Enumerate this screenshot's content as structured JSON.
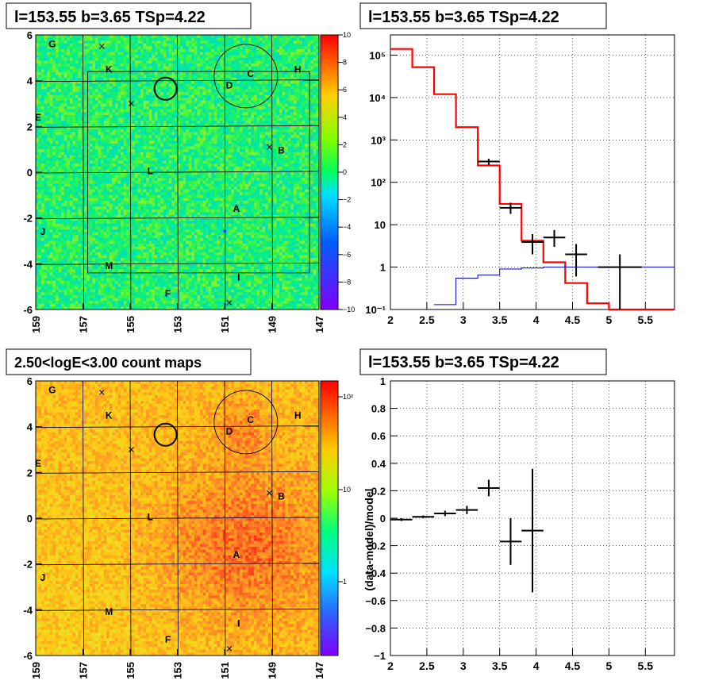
{
  "colors": {
    "frame": "#000000",
    "model_line": "#ff0000",
    "background_line": "#0000cc",
    "data_points": "#000000",
    "grid": "#000000"
  },
  "panels": {
    "tl_title": "l=153.55 b=3.65 TSp=4.22",
    "tr_title": "l=153.55 b=3.65 TSp=4.22",
    "bl_title": "2.50<logE<3.00 count maps",
    "br_title": "l=153.55 b=3.65 TSp=4.22"
  },
  "map_axes": {
    "x_ticks": [
      "159",
      "157",
      "155",
      "153",
      "151",
      "149",
      "147"
    ],
    "y_ticks": [
      "6",
      "4",
      "2",
      "0",
      "-2",
      "-4",
      "-6"
    ],
    "residual_colorbar_ticks": [
      "10",
      "8",
      "6",
      "4",
      "2",
      "0",
      "−2",
      "−4",
      "−6",
      "−8",
      "−10"
    ],
    "count_colorbar_ticks": [
      "10²",
      "10",
      "1"
    ]
  },
  "map_sources": [
    {
      "label": "G"
    },
    {
      "label": "K"
    },
    {
      "label": "C"
    },
    {
      "label": "H"
    },
    {
      "label": "D"
    },
    {
      "label": "E"
    },
    {
      "label": "B"
    },
    {
      "label": "L"
    },
    {
      "label": "A"
    },
    {
      "label": "J"
    },
    {
      "label": "M"
    },
    {
      "label": "I"
    },
    {
      "label": "F"
    }
  ],
  "chart_data": [
    {
      "type": "heatmap",
      "title": "l=153.55 b=3.65 TSp=4.22",
      "description_kind": "residual significance map",
      "xlim": [
        159,
        147
      ],
      "ylim": [
        -6,
        6
      ],
      "zlim": [
        -10,
        10
      ],
      "colorbar_ticks": [
        10,
        8,
        6,
        4,
        2,
        0,
        -2,
        -4,
        -6,
        -8,
        -10
      ],
      "grid": true
    },
    {
      "type": "line",
      "title": "l=153.55 b=3.65 TSp=4.22",
      "xlim": [
        2,
        5.9
      ],
      "ylim": [
        0.1,
        300000
      ],
      "y_scale": "log",
      "x_ticks": [
        "2",
        "2.5",
        "3",
        "3.5",
        "4",
        "4.5",
        "5",
        "5.5"
      ],
      "y_ticks": [
        "10⁻¹",
        "1",
        "10",
        "10²",
        "10³",
        "10⁴",
        "10⁵"
      ],
      "grid": true,
      "series": [
        {
          "kind": "step",
          "color": "#ff0000",
          "bins": [
            2.0,
            2.3,
            2.6,
            2.9,
            3.2,
            3.5,
            3.8,
            4.1,
            4.4,
            4.7,
            5.0,
            5.9
          ],
          "values": [
            140000,
            52000,
            12000,
            2000,
            250,
            31,
            4.2,
            1.3,
            0.42,
            0.14,
            0.1
          ]
        },
        {
          "kind": "step",
          "color": "#0000cc",
          "bins": [
            2.6,
            2.9,
            3.2,
            3.5,
            3.8,
            4.1,
            4.4,
            4.7,
            5.0,
            5.9
          ],
          "values": [
            0.13,
            0.55,
            0.65,
            0.9,
            0.95,
            1.0,
            1.0,
            1.0,
            1.0
          ]
        },
        {
          "kind": "errorbar",
          "color": "#000000",
          "points": [
            {
              "x": 3.35,
              "y": 310,
              "xerr": 0.15,
              "ylo": 260,
              "yhi": 360
            },
            {
              "x": 3.65,
              "y": 25,
              "xerr": 0.15,
              "ylo": 18,
              "yhi": 33
            },
            {
              "x": 3.95,
              "y": 3.9,
              "xerr": 0.15,
              "ylo": 2.0,
              "yhi": 6.0
            },
            {
              "x": 4.25,
              "y": 5.0,
              "xerr": 0.15,
              "ylo": 3.0,
              "yhi": 7.5
            },
            {
              "x": 4.55,
              "y": 2.0,
              "xerr": 0.15,
              "ylo": 0.6,
              "yhi": 3.5
            },
            {
              "x": 5.15,
              "y": 1.0,
              "xerr": 0.3,
              "ylo": 0.1,
              "yhi": 2.0
            }
          ]
        }
      ]
    },
    {
      "type": "heatmap",
      "title": "2.50<logE<3.00 count maps",
      "xlim": [
        159,
        147
      ],
      "ylim": [
        -6,
        6
      ],
      "z_scale": "log",
      "colorbar_ticks": [
        "10²",
        "10",
        "1"
      ],
      "grid": true
    },
    {
      "type": "scatter",
      "title": "l=153.55 b=3.65 TSp=4.22",
      "ylabel": "(data-model)/model",
      "xlim": [
        2,
        5.9
      ],
      "ylim": [
        -1,
        1
      ],
      "x_ticks": [
        "2",
        "2.5",
        "3",
        "3.5",
        "4",
        "4.5",
        "5",
        "5.5"
      ],
      "y_ticks": [
        "1",
        "0.8",
        "0.6",
        "0.4",
        "0.2",
        "0",
        "−0.2",
        "−0.4",
        "−0.6",
        "−0.8",
        "−1"
      ],
      "grid": true,
      "points": [
        {
          "x": 2.15,
          "y": -0.01,
          "xerr": 0.15,
          "yerr": 0.01
        },
        {
          "x": 2.45,
          "y": 0.01,
          "xerr": 0.15,
          "yerr": 0.01
        },
        {
          "x": 2.75,
          "y": 0.035,
          "xerr": 0.15,
          "yerr": 0.02
        },
        {
          "x": 3.05,
          "y": 0.06,
          "xerr": 0.15,
          "yerr": 0.03
        },
        {
          "x": 3.35,
          "y": 0.22,
          "xerr": 0.15,
          "yerr": 0.06
        },
        {
          "x": 3.65,
          "y": -0.17,
          "xerr": 0.15,
          "yerr": 0.17
        },
        {
          "x": 3.95,
          "y": -0.09,
          "xerr": 0.15,
          "yerr": 0.45
        }
      ]
    }
  ]
}
